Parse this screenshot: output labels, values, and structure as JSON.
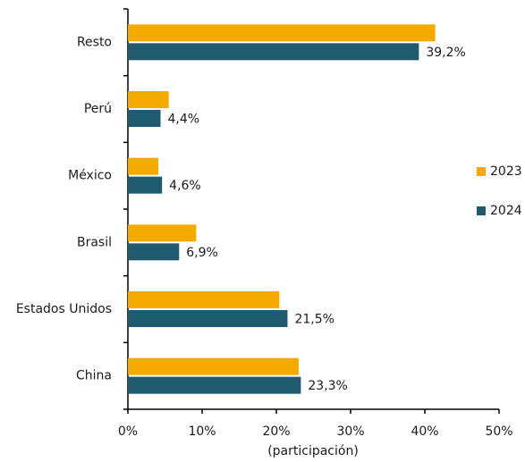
{
  "chart_data": {
    "type": "bar",
    "orientation": "horizontal",
    "x_label": "(participación)",
    "categories": [
      "Resto",
      "Perú",
      "México",
      "Brasil",
      "Estados Unidos",
      "China"
    ],
    "series": [
      {
        "name": "2023",
        "color": "#f5aa00",
        "values": [
          41.4,
          5.5,
          4.1,
          9.2,
          20.4,
          23.0
        ]
      },
      {
        "name": "2024",
        "color": "#1f5a6e",
        "values": [
          39.2,
          4.4,
          4.6,
          6.9,
          21.5,
          23.3
        ],
        "value_labels": [
          "39,2%",
          "4,4%",
          "4,6%",
          "6,9%",
          "21,5%",
          "23,3%"
        ]
      }
    ],
    "xlim": [
      0,
      50
    ],
    "xticks": [
      {
        "value": 0,
        "label": "0%"
      },
      {
        "value": 10,
        "label": "10%"
      },
      {
        "value": 20,
        "label": "20%"
      },
      {
        "value": 30,
        "label": "30%"
      },
      {
        "value": 40,
        "label": "40%"
      },
      {
        "value": 50,
        "label": "50%"
      }
    ],
    "grid": false,
    "legend": "right"
  }
}
